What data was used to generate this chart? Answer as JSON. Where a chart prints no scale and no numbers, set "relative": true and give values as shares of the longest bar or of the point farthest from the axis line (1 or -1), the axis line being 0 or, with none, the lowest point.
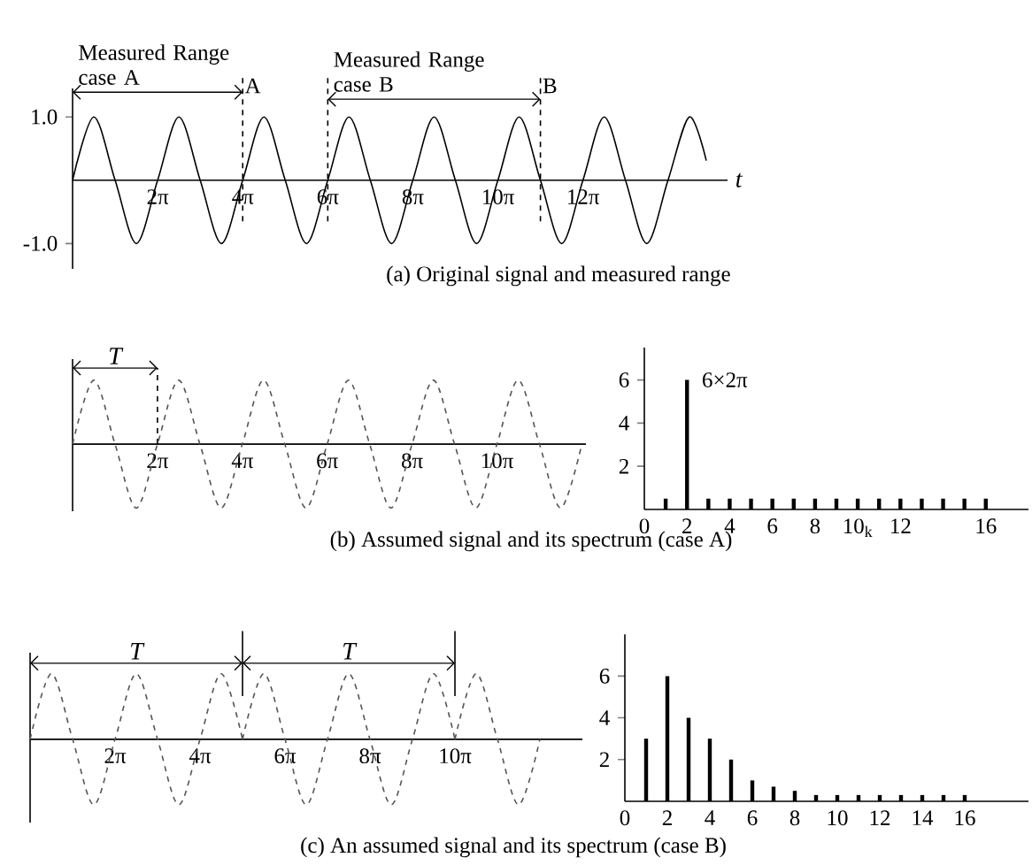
{
  "chart_data": [
    {
      "type": "line",
      "color": "#000000",
      "x": [
        0,
        1.571,
        3.142,
        4.712,
        6.283,
        7.854,
        9.425,
        10.996,
        12.566,
        14.137,
        15.708,
        17.279,
        18.85,
        20.42,
        21.991,
        23.562,
        25.133,
        26.704,
        28.274,
        29.845,
        31.416,
        32.987,
        34.558,
        36.128,
        37.699,
        39.27,
        40.841,
        42.412,
        43.982,
        45.553,
        46.81
      ],
      "values": [
        0,
        1,
        0,
        -1,
        0,
        1,
        0,
        -1,
        0,
        1,
        0,
        -1,
        0,
        1,
        0,
        -1,
        0,
        1,
        0,
        -1,
        0,
        1,
        0,
        -1,
        0,
        1,
        0,
        -1,
        0,
        1,
        0.31
      ],
      "xlim": [
        0,
        48.38
      ],
      "ylim": [
        -1.4,
        1.45
      ],
      "xticks": [
        {
          "value": 6.283,
          "label": "2π"
        },
        {
          "value": 12.566,
          "label": "4π"
        },
        {
          "value": 18.85,
          "label": "6π"
        },
        {
          "value": 25.133,
          "label": "8π"
        },
        {
          "value": 31.416,
          "label": "10π"
        },
        {
          "value": 37.699,
          "label": "12π"
        }
      ],
      "yticks": [
        {
          "value": 1,
          "label": "1.0"
        },
        {
          "value": -1,
          "label": "-1.0"
        }
      ],
      "xlabel": "t",
      "ref_lines": [
        {
          "axis": "x",
          "value": 12.566,
          "label": "A",
          "line_style": "dashed"
        },
        {
          "axis": "x",
          "value": 18.85,
          "line_style": "dashed"
        },
        {
          "axis": "x",
          "value": 34.558,
          "label": "B",
          "line_style": "dashed"
        }
      ],
      "annotations": [
        "Measured Range case A",
        {
          "text": "Measured Range case B",
          "x": 18.85,
          "y": 1.28
        },
        "(a) Original signal and measured range"
      ]
    },
    {
      "type": "line",
      "color": "#555555",
      "line_style": "dashed",
      "relative": true,
      "x": [
        0,
        1.571,
        3.142,
        4.712,
        6.283,
        7.854,
        9.425,
        10.996,
        12.566,
        14.137,
        15.708,
        17.279,
        18.85,
        20.42,
        21.991,
        23.562,
        25.133,
        26.704,
        28.274,
        29.845,
        31.416,
        32.987,
        34.558,
        36.128,
        37.699
      ],
      "values": [
        0,
        1,
        0,
        -1,
        0,
        1,
        0,
        -1,
        0,
        1,
        0,
        -1,
        0,
        1,
        0,
        -1,
        0,
        1,
        0,
        -1,
        0,
        1,
        0,
        -1,
        0
      ],
      "xlim": [
        0,
        38.0
      ],
      "xticks": [
        {
          "value": 6.283,
          "label": "2π"
        },
        {
          "value": 12.566,
          "label": "4π"
        },
        {
          "value": 18.85,
          "label": "6π"
        },
        {
          "value": 25.133,
          "label": "8π"
        },
        {
          "value": 31.416,
          "label": "10π"
        }
      ],
      "ref_lines": [
        {
          "axis": "x",
          "value": 6.283,
          "line_style": "dashed"
        }
      ],
      "annotations": [
        "T",
        "(b) Assumed signal and its spectrum (case A)"
      ]
    },
    {
      "type": "bar",
      "color": "#000000",
      "x": [
        1,
        2,
        3,
        4,
        5,
        6,
        7,
        8,
        9,
        10,
        11,
        12,
        13,
        14,
        15,
        16
      ],
      "values": [
        0.5,
        6,
        0.5,
        0.5,
        0.5,
        0.5,
        0.5,
        0.5,
        0.5,
        0.5,
        0.5,
        0.5,
        0.5,
        0.5,
        0.5,
        0.5
      ],
      "xlim": [
        0,
        18
      ],
      "ylim": [
        0,
        7.5
      ],
      "xticks": [
        0,
        2,
        4,
        6,
        8,
        {
          "value": 10,
          "label": "10$_{k}$"
        },
        12,
        16
      ],
      "yticks": [
        2,
        4,
        6
      ],
      "annotations": [
        {
          "text": "6×2π",
          "x": 2,
          "y": 6
        }
      ]
    },
    {
      "type": "line",
      "relative": true,
      "line_style": "dashed",
      "series": [
        {
          "color": "#555555",
          "x": [
            0,
            1.571,
            3.142,
            4.712,
            6.283,
            7.854,
            9.425,
            10.996,
            12.566,
            14.137,
            15.708
          ],
          "values": [
            0,
            1,
            0,
            -1,
            0,
            1,
            0,
            -1,
            0,
            1,
            0
          ]
        },
        {
          "color": "#555555",
          "x": [
            15.708,
            17.279,
            18.85,
            20.42,
            21.991,
            23.562,
            25.133,
            26.704,
            28.274,
            29.845,
            31.416
          ],
          "values": [
            0,
            1,
            0,
            -1,
            0,
            1,
            0,
            -1,
            0,
            1,
            0
          ]
        },
        {
          "color": "#555555",
          "x": [
            31.416,
            32.987,
            34.558,
            36.128,
            37.699
          ],
          "values": [
            0,
            1,
            0,
            -1,
            0
          ]
        }
      ],
      "xlim": [
        0,
        40.84
      ],
      "xticks": [
        {
          "value": 6.283,
          "label": "2π"
        },
        {
          "value": 12.566,
          "label": "4π"
        },
        {
          "value": 18.85,
          "label": "6π"
        },
        {
          "value": 25.133,
          "label": "8π"
        },
        {
          "value": 31.416,
          "label": "10π"
        }
      ],
      "ref_lines": [
        {
          "axis": "x",
          "value": 15.708,
          "line_style": "solid"
        },
        {
          "axis": "x",
          "value": 31.416,
          "line_style": "solid"
        }
      ],
      "annotations": [
        "T",
        "T",
        "(c) An assumed signal and its spectrum (case B)"
      ]
    },
    {
      "type": "bar",
      "color": "#000000",
      "x": [
        1,
        2,
        3,
        4,
        5,
        6,
        7,
        8,
        9,
        10,
        11,
        12,
        13,
        14,
        15,
        16
      ],
      "values": [
        3,
        6,
        4,
        3,
        2,
        1,
        0.7,
        0.5,
        0.3,
        0.3,
        0.3,
        0.3,
        0.3,
        0.3,
        0.3,
        0.3
      ],
      "xlim": [
        0,
        19
      ],
      "ylim": [
        0,
        8
      ],
      "xticks": [
        0,
        2,
        4,
        6,
        8,
        10,
        12,
        14,
        16
      ],
      "yticks": [
        2,
        4,
        6
      ]
    }
  ]
}
